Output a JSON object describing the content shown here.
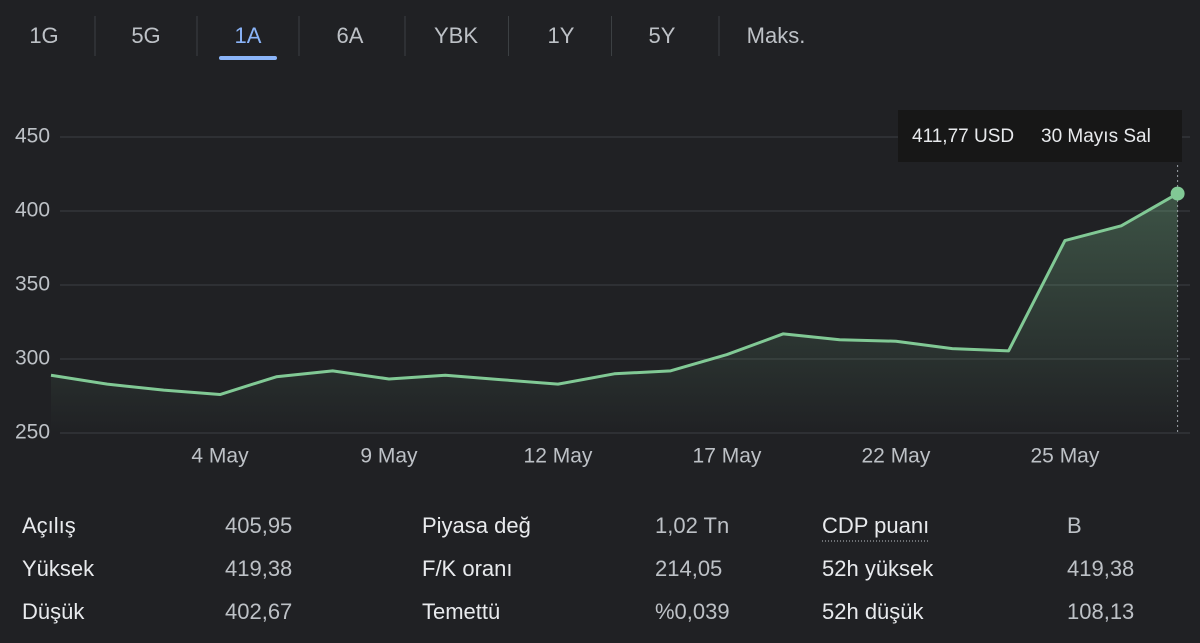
{
  "tabs": [
    "1G",
    "5G",
    "1A",
    "6A",
    "YBK",
    "1Y",
    "5Y",
    "Maks."
  ],
  "selected_tab": 2,
  "chart_data": {
    "type": "line",
    "categories": [
      null,
      null,
      null,
      "4 May",
      null,
      null,
      "9 May",
      null,
      null,
      "12 May",
      null,
      null,
      "17 May",
      null,
      null,
      "22 May",
      null,
      null,
      "25 May",
      null,
      null
    ],
    "series": [
      {
        "color": "#81c995",
        "values": [
          289,
          283,
          279,
          276,
          288,
          292,
          286.5,
          289,
          286,
          283,
          290,
          292,
          303,
          317,
          313,
          312,
          307,
          305.5,
          380,
          390,
          411.77
        ]
      }
    ],
    "ylim": [
      250,
      450
    ],
    "yticks": [
      250,
      300,
      350,
      400,
      450
    ],
    "grid": true,
    "tooltip": {
      "value_label": "411,77 USD",
      "date": "30 Mayıs Sal"
    }
  },
  "stats": [
    [
      {
        "label": "Açılış",
        "value": "405,95"
      },
      {
        "label": "Yüksek",
        "value": "419,38"
      },
      {
        "label": "Düşük",
        "value": "402,67"
      }
    ],
    [
      {
        "label": "Piyasa değ",
        "value": "1,02 Tn"
      },
      {
        "label": "F/K oranı",
        "value": "214,05"
      },
      {
        "label": "Temettü",
        "value": "%0,039"
      }
    ],
    [
      {
        "label": "CDP puanı",
        "value": "B"
      },
      {
        "label": "52h yüksek",
        "value": "419,38"
      },
      {
        "label": "52h düşük",
        "value": "108,13"
      }
    ]
  ]
}
